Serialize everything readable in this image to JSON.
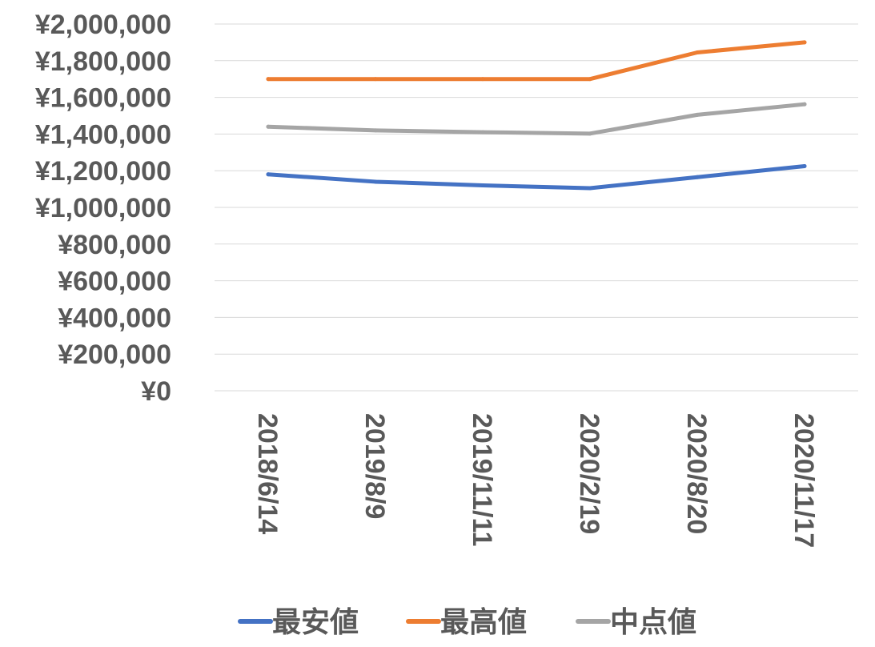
{
  "chart_data": {
    "type": "line",
    "categories": [
      "2018/6/14",
      "2019/8/9",
      "2019/11/11",
      "2020/2/19",
      "2020/8/20",
      "2020/11/17"
    ],
    "series": [
      {
        "name": "最安値",
        "color": "#4472c4",
        "values": [
          1180000,
          1140000,
          1120000,
          1105000,
          1165000,
          1225000
        ]
      },
      {
        "name": "最高値",
        "color": "#ed7d31",
        "values": [
          1700000,
          1700000,
          1700000,
          1700000,
          1845000,
          1900000
        ]
      },
      {
        "name": "中点値",
        "color": "#a5a5a5",
        "values": [
          1440000,
          1420000,
          1410000,
          1402500,
          1505000,
          1562500
        ]
      }
    ],
    "ylim": [
      0,
      2000000
    ],
    "yticks": [
      0,
      200000,
      400000,
      600000,
      800000,
      1000000,
      1200000,
      1400000,
      1600000,
      1800000,
      2000000
    ],
    "ytick_labels": [
      "¥0",
      "¥200,000",
      "¥400,000",
      "¥600,000",
      "¥800,000",
      "¥1,000,000",
      "¥1,200,000",
      "¥1,400,000",
      "¥1,600,000",
      "¥1,800,000",
      "¥2,000,000"
    ],
    "title": "",
    "xlabel": "",
    "ylabel": "",
    "grid": true,
    "legend_position": "bottom"
  }
}
